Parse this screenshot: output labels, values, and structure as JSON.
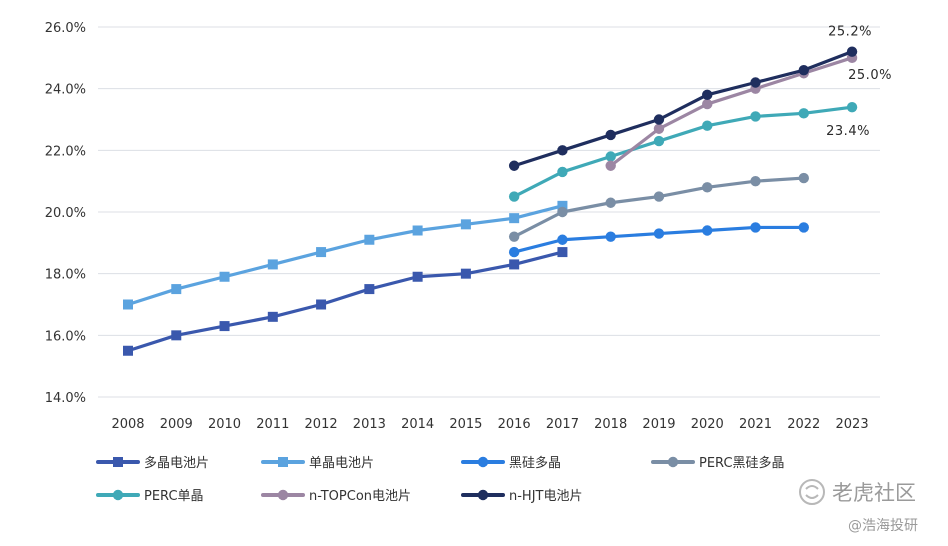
{
  "chart_data": {
    "type": "line",
    "title": "",
    "xlabel": "",
    "ylabel": "",
    "ylim": [
      14.0,
      26.0
    ],
    "y_ticks": [
      "14.0%",
      "16.0%",
      "18.0%",
      "20.0%",
      "22.0%",
      "24.0%",
      "26.0%"
    ],
    "y_tick_values": [
      14,
      16,
      18,
      20,
      22,
      24,
      26
    ],
    "categories": [
      "2008",
      "2009",
      "2010",
      "2011",
      "2012",
      "2013",
      "2014",
      "2015",
      "2016",
      "2017",
      "2018",
      "2019",
      "2020",
      "2021",
      "2022",
      "2023"
    ],
    "grid": true,
    "legend_position": "bottom",
    "series": [
      {
        "name": "多晶电池片",
        "color": "#3a58ad",
        "marker": "square",
        "values": [
          15.5,
          16.0,
          16.3,
          16.6,
          17.0,
          17.5,
          17.9,
          18.0,
          18.3,
          18.7,
          null,
          null,
          null,
          null,
          null,
          null
        ]
      },
      {
        "name": "单晶电池片",
        "color": "#5ba3df",
        "marker": "square",
        "values": [
          17.0,
          17.5,
          17.9,
          18.3,
          18.7,
          19.1,
          19.4,
          19.6,
          19.8,
          20.2,
          null,
          null,
          null,
          null,
          null,
          null
        ]
      },
      {
        "name": "黑硅多晶",
        "color": "#2a7de0",
        "marker": "circle",
        "values": [
          null,
          null,
          null,
          null,
          null,
          null,
          null,
          null,
          18.7,
          19.1,
          19.2,
          19.3,
          19.4,
          19.5,
          19.5,
          null
        ]
      },
      {
        "name": "PERC黑硅多晶",
        "color": "#7a8ea5",
        "marker": "circle",
        "values": [
          null,
          null,
          null,
          null,
          null,
          null,
          null,
          null,
          19.2,
          20.0,
          20.3,
          20.5,
          20.8,
          21.0,
          21.1,
          null
        ]
      },
      {
        "name": "PERC单晶",
        "color": "#3fa9b7",
        "marker": "circle",
        "values": [
          null,
          null,
          null,
          null,
          null,
          null,
          null,
          null,
          20.5,
          21.3,
          21.8,
          22.3,
          22.8,
          23.1,
          23.2,
          23.4
        ]
      },
      {
        "name": "n-TOPCon电池片",
        "color": "#9c86a3",
        "marker": "circle",
        "values": [
          null,
          null,
          null,
          null,
          null,
          null,
          null,
          null,
          null,
          null,
          21.5,
          22.7,
          23.5,
          24.0,
          24.5,
          25.0
        ]
      },
      {
        "name": "n-HJT电池片",
        "color": "#1f2e5e",
        "marker": "circle",
        "values": [
          null,
          null,
          null,
          null,
          null,
          null,
          null,
          null,
          21.5,
          22.0,
          22.5,
          23.0,
          23.8,
          24.2,
          24.6,
          25.2
        ]
      }
    ],
    "annotations": [
      {
        "text": "25.2%",
        "x": "2023",
        "y": 25.2,
        "placement": "above"
      },
      {
        "text": "25.0%",
        "x": "2023",
        "y": 25.0,
        "placement": "below-right"
      },
      {
        "text": "23.4%",
        "x": "2023",
        "y": 23.4,
        "placement": "below"
      }
    ]
  },
  "watermark": {
    "brand": "老虎社区",
    "author": "@浩海投研"
  }
}
